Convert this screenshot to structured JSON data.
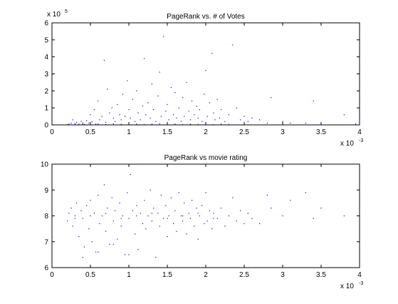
{
  "chart_data": [
    {
      "type": "scatter",
      "title": "PageRank vs. # of Votes",
      "xlabel": "",
      "ylabel": "",
      "xlim": [
        0,
        4
      ],
      "ylim": [
        0,
        6
      ],
      "xticks": [
        "0",
        "0.5",
        "1",
        "1.5",
        "2",
        "2.5",
        "3",
        "3.5",
        "4"
      ],
      "yticks": [
        "0",
        "1",
        "2",
        "3",
        "4",
        "5",
        "6"
      ],
      "x_exponent_label": "x 10",
      "x_exponent": "-3",
      "y_exponent_label": "x 10",
      "y_exponent": "5",
      "grid": false,
      "color": "#0000ff",
      "points": [
        [
          0.2,
          0.02
        ],
        [
          0.22,
          0.05
        ],
        [
          0.25,
          0.1
        ],
        [
          0.27,
          0.3
        ],
        [
          0.3,
          0.08
        ],
        [
          0.32,
          0.15
        ],
        [
          0.35,
          0.05
        ],
        [
          0.38,
          0.2
        ],
        [
          0.4,
          0.12
        ],
        [
          0.42,
          0.03
        ],
        [
          0.45,
          0.25
        ],
        [
          0.48,
          0.1
        ],
        [
          0.5,
          0.6
        ],
        [
          0.52,
          0.18
        ],
        [
          0.55,
          0.9
        ],
        [
          0.57,
          0.05
        ],
        [
          0.6,
          1.4
        ],
        [
          0.62,
          0.3
        ],
        [
          0.65,
          0.5
        ],
        [
          0.68,
          3.8
        ],
        [
          0.7,
          0.15
        ],
        [
          0.72,
          2.1
        ],
        [
          0.75,
          0.7
        ],
        [
          0.78,
          1.0
        ],
        [
          0.8,
          0.4
        ],
        [
          0.82,
          0.2
        ],
        [
          0.85,
          1.2
        ],
        [
          0.88,
          0.6
        ],
        [
          0.9,
          0.3
        ],
        [
          0.92,
          1.8
        ],
        [
          0.95,
          0.5
        ],
        [
          0.98,
          2.6
        ],
        [
          1.0,
          0.9
        ],
        [
          1.02,
          0.4
        ],
        [
          1.05,
          1.5
        ],
        [
          1.08,
          0.2
        ],
        [
          1.1,
          2.0
        ],
        [
          1.12,
          0.7
        ],
        [
          1.15,
          0.3
        ],
        [
          1.18,
          1.1
        ],
        [
          1.2,
          3.9
        ],
        [
          1.22,
          0.6
        ],
        [
          1.25,
          1.3
        ],
        [
          1.28,
          0.4
        ],
        [
          1.3,
          2.4
        ],
        [
          1.32,
          0.9
        ],
        [
          1.35,
          0.2
        ],
        [
          1.38,
          1.7
        ],
        [
          1.4,
          3.1
        ],
        [
          1.42,
          0.5
        ],
        [
          1.45,
          5.2
        ],
        [
          1.48,
          0.8
        ],
        [
          1.5,
          1.2
        ],
        [
          1.52,
          0.3
        ],
        [
          1.55,
          2.2
        ],
        [
          1.58,
          0.6
        ],
        [
          1.6,
          1.9
        ],
        [
          1.62,
          0.4
        ],
        [
          1.65,
          1.0
        ],
        [
          1.68,
          0.2
        ],
        [
          1.7,
          1.6
        ],
        [
          1.72,
          0.5
        ],
        [
          1.75,
          2.5
        ],
        [
          1.78,
          0.8
        ],
        [
          1.8,
          0.3
        ],
        [
          1.82,
          1.4
        ],
        [
          1.85,
          0.6
        ],
        [
          1.88,
          1.1
        ],
        [
          1.9,
          0.4
        ],
        [
          1.92,
          0.9
        ],
        [
          1.95,
          0.2
        ],
        [
          1.98,
          1.8
        ],
        [
          2.0,
          3.2
        ],
        [
          2.02,
          0.5
        ],
        [
          2.05,
          1.3
        ],
        [
          2.08,
          4.2
        ],
        [
          2.1,
          0.7
        ],
        [
          2.12,
          0.3
        ],
        [
          2.15,
          1.5
        ],
        [
          2.18,
          0.4
        ],
        [
          2.2,
          0.9
        ],
        [
          2.25,
          0.2
        ],
        [
          2.3,
          0.6
        ],
        [
          2.35,
          4.7
        ],
        [
          2.4,
          1.0
        ],
        [
          2.45,
          0.3
        ],
        [
          2.5,
          0.5
        ],
        [
          2.55,
          0.2
        ],
        [
          2.6,
          0.4
        ],
        [
          2.7,
          0.3
        ],
        [
          2.8,
          0.1
        ],
        [
          2.85,
          1.6
        ],
        [
          3.0,
          0.2
        ],
        [
          3.1,
          0.1
        ],
        [
          3.3,
          0.1
        ],
        [
          3.4,
          1.4
        ],
        [
          3.5,
          0.05
        ],
        [
          3.8,
          0.6
        ],
        [
          3.95,
          0.05
        ],
        [
          0.3,
          0.02
        ],
        [
          0.4,
          0.04
        ],
        [
          0.5,
          0.03
        ],
        [
          0.6,
          0.05
        ],
        [
          0.7,
          0.02
        ],
        [
          0.8,
          0.06
        ],
        [
          0.9,
          0.04
        ],
        [
          1.0,
          0.03
        ],
        [
          1.1,
          0.05
        ],
        [
          1.2,
          0.02
        ],
        [
          1.3,
          0.04
        ],
        [
          1.4,
          0.06
        ],
        [
          1.5,
          0.03
        ],
        [
          1.6,
          0.05
        ],
        [
          1.7,
          0.02
        ],
        [
          1.8,
          0.04
        ],
        [
          1.9,
          0.03
        ],
        [
          2.0,
          0.05
        ],
        [
          2.1,
          0.02
        ],
        [
          2.2,
          0.04
        ],
        [
          2.3,
          0.03
        ]
      ]
    },
    {
      "type": "scatter",
      "title": "PageRank vs movie rating",
      "xlabel": "",
      "ylabel": "",
      "xlim": [
        0,
        4
      ],
      "ylim": [
        6,
        10
      ],
      "xticks": [
        "0",
        "0.5",
        "1",
        "1.5",
        "2",
        "2.5",
        "3",
        "3.5",
        "4"
      ],
      "yticks": [
        "6",
        "7",
        "8",
        "9",
        "10"
      ],
      "x_exponent_label": "x 10",
      "x_exponent": "-3",
      "grid": false,
      "color": "#0000ff",
      "points": [
        [
          0.2,
          7.8
        ],
        [
          0.22,
          8.1
        ],
        [
          0.25,
          8.3
        ],
        [
          0.27,
          7.6
        ],
        [
          0.3,
          8.0
        ],
        [
          0.32,
          8.5
        ],
        [
          0.35,
          7.2
        ],
        [
          0.38,
          8.2
        ],
        [
          0.4,
          7.9
        ],
        [
          0.42,
          6.8
        ],
        [
          0.45,
          8.4
        ],
        [
          0.48,
          7.5
        ],
        [
          0.5,
          8.6
        ],
        [
          0.52,
          7.0
        ],
        [
          0.55,
          8.1
        ],
        [
          0.57,
          6.6
        ],
        [
          0.6,
          8.8
        ],
        [
          0.62,
          7.7
        ],
        [
          0.65,
          8.0
        ],
        [
          0.68,
          9.2
        ],
        [
          0.7,
          7.4
        ],
        [
          0.72,
          8.3
        ],
        [
          0.75,
          6.9
        ],
        [
          0.78,
          8.7
        ],
        [
          0.8,
          7.8
        ],
        [
          0.82,
          8.2
        ],
        [
          0.85,
          7.1
        ],
        [
          0.88,
          8.5
        ],
        [
          0.9,
          7.6
        ],
        [
          0.92,
          8.0
        ],
        [
          0.95,
          6.5
        ],
        [
          0.98,
          8.9
        ],
        [
          1.0,
          7.9
        ],
        [
          1.02,
          9.6
        ],
        [
          1.05,
          8.2
        ],
        [
          1.08,
          7.3
        ],
        [
          1.1,
          8.4
        ],
        [
          1.12,
          6.7
        ],
        [
          1.15,
          8.1
        ],
        [
          1.18,
          7.7
        ],
        [
          1.2,
          8.6
        ],
        [
          1.22,
          7.5
        ],
        [
          1.25,
          8.0
        ],
        [
          1.28,
          9.0
        ],
        [
          1.3,
          7.8
        ],
        [
          1.32,
          8.3
        ],
        [
          1.35,
          6.4
        ],
        [
          1.38,
          8.1
        ],
        [
          1.4,
          7.6
        ],
        [
          1.42,
          8.8
        ],
        [
          1.45,
          7.9
        ],
        [
          1.48,
          8.4
        ],
        [
          1.5,
          7.2
        ],
        [
          1.52,
          8.0
        ],
        [
          1.55,
          8.7
        ],
        [
          1.58,
          7.7
        ],
        [
          1.6,
          8.2
        ],
        [
          1.62,
          7.4
        ],
        [
          1.65,
          8.9
        ],
        [
          1.68,
          8.0
        ],
        [
          1.7,
          7.8
        ],
        [
          1.72,
          8.5
        ],
        [
          1.75,
          7.3
        ],
        [
          1.78,
          8.1
        ],
        [
          1.8,
          7.9
        ],
        [
          1.82,
          8.6
        ],
        [
          1.85,
          7.6
        ],
        [
          1.88,
          8.3
        ],
        [
          1.9,
          7.1
        ],
        [
          1.92,
          8.0
        ],
        [
          1.95,
          8.4
        ],
        [
          1.98,
          7.7
        ],
        [
          2.0,
          8.9
        ],
        [
          2.02,
          7.8
        ],
        [
          2.05,
          8.2
        ],
        [
          2.08,
          7.5
        ],
        [
          2.1,
          8.1
        ],
        [
          2.15,
          7.9
        ],
        [
          2.2,
          8.3
        ],
        [
          2.25,
          7.6
        ],
        [
          2.3,
          8.0
        ],
        [
          2.35,
          8.7
        ],
        [
          2.4,
          7.8
        ],
        [
          2.45,
          8.2
        ],
        [
          2.5,
          7.7
        ],
        [
          2.55,
          8.1
        ],
        [
          2.6,
          7.9
        ],
        [
          2.7,
          7.7
        ],
        [
          2.8,
          8.8
        ],
        [
          2.85,
          8.3
        ],
        [
          3.0,
          8.0
        ],
        [
          3.1,
          8.6
        ],
        [
          3.3,
          8.9
        ],
        [
          3.4,
          7.9
        ],
        [
          3.5,
          8.3
        ],
        [
          3.8,
          8.0
        ],
        [
          0.3,
          7.9
        ],
        [
          0.5,
          8.0
        ],
        [
          0.7,
          8.1
        ],
        [
          0.9,
          7.9
        ],
        [
          1.1,
          8.0
        ],
        [
          1.3,
          8.1
        ],
        [
          1.5,
          7.9
        ],
        [
          1.7,
          8.0
        ],
        [
          1.9,
          8.1
        ],
        [
          2.1,
          7.9
        ],
        [
          0.4,
          6.4
        ],
        [
          0.6,
          6.6
        ],
        [
          0.8,
          6.9
        ],
        [
          1.0,
          6.5
        ]
      ]
    }
  ]
}
